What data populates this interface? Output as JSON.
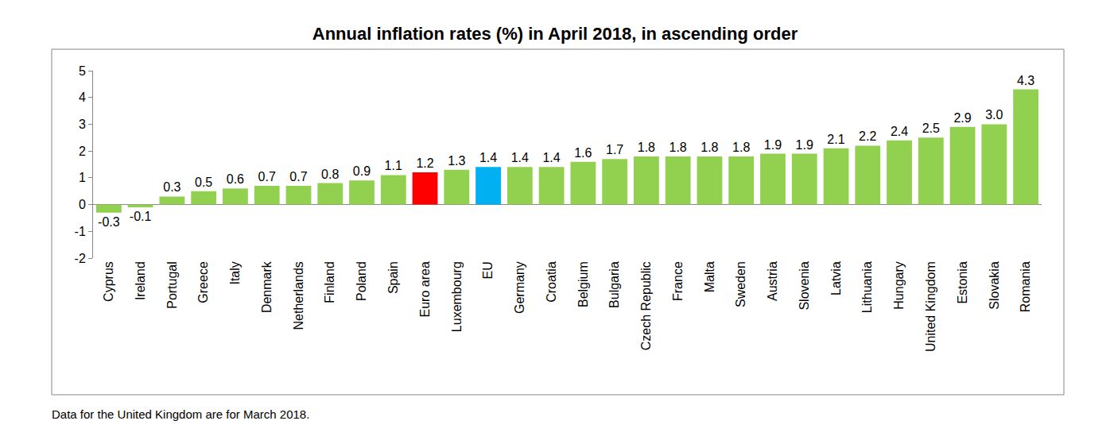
{
  "chart_data": {
    "type": "bar",
    "title": "Annual inflation rates (%) in April 2018, in ascending order",
    "categories": [
      "Cyprus",
      "Ireland",
      "Portugal",
      "Greece",
      "Italy",
      "Denmark",
      "Netherlands",
      "Finland",
      "Poland",
      "Spain",
      "Euro area",
      "Luxembourg",
      "EU",
      "Germany",
      "Croatia",
      "Belgium",
      "Bulgaria",
      "Czech Republic",
      "France",
      "Malta",
      "Sweden",
      "Austria",
      "Slovenia",
      "Latvia",
      "Lithuania",
      "Hungary",
      "United Kingdom",
      "Estonia",
      "Slovakia",
      "Romania"
    ],
    "values": [
      -0.3,
      -0.1,
      0.3,
      0.5,
      0.6,
      0.7,
      0.7,
      0.8,
      0.9,
      1.1,
      1.2,
      1.3,
      1.4,
      1.4,
      1.4,
      1.6,
      1.7,
      1.8,
      1.8,
      1.8,
      1.8,
      1.9,
      1.9,
      2.1,
      2.2,
      2.4,
      2.5,
      2.9,
      3.0,
      4.3
    ],
    "value_labels": [
      "-0.3",
      "-0.1",
      "0.3",
      "0.5",
      "0.6",
      "0.7",
      "0.7",
      "0.8",
      "0.9",
      "1.1",
      "1.2",
      "1.3",
      "1.4",
      "1.4",
      "1.4",
      "1.6",
      "1.7",
      "1.8",
      "1.8",
      "1.8",
      "1.8",
      "1.9",
      "1.9",
      "2.1",
      "2.2",
      "2.4",
      "2.5",
      "2.9",
      "3.0",
      "4.3"
    ],
    "colors": [
      "#92d050",
      "#92d050",
      "#92d050",
      "#92d050",
      "#92d050",
      "#92d050",
      "#92d050",
      "#92d050",
      "#92d050",
      "#92d050",
      "#ff0000",
      "#92d050",
      "#00b0f0",
      "#92d050",
      "#92d050",
      "#92d050",
      "#92d050",
      "#92d050",
      "#92d050",
      "#92d050",
      "#92d050",
      "#92d050",
      "#92d050",
      "#92d050",
      "#92d050",
      "#92d050",
      "#92d050",
      "#92d050",
      "#92d050",
      "#92d050"
    ],
    "ylim": [
      -2,
      5
    ],
    "yticks": [
      -2,
      -1,
      0,
      1,
      2,
      3,
      4,
      5
    ],
    "grid": false,
    "data_labels": true,
    "annotations": [
      "Data for the United Kingdom are for March 2018."
    ]
  }
}
